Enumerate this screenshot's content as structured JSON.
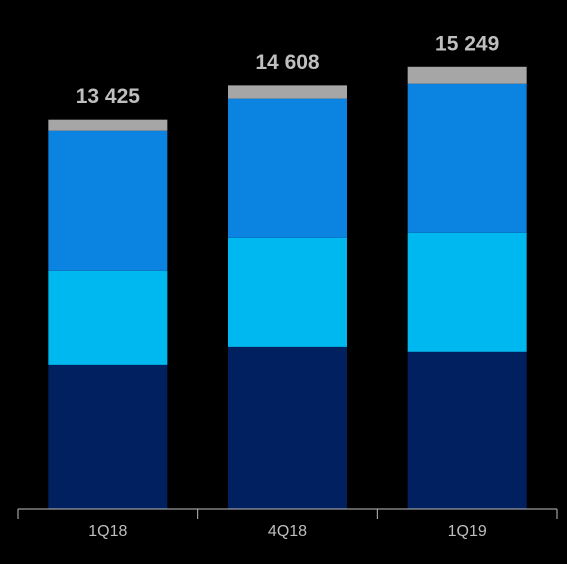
{
  "chart_data": {
    "type": "stacked-bar",
    "categories": [
      "1Q18",
      "4Q18",
      "1Q19"
    ],
    "series": [
      {
        "color": "#002060",
        "values": [
          4970,
          5590,
          5420
        ]
      },
      {
        "color": "#00b8f0",
        "values": [
          3245,
          3760,
          4105
        ]
      },
      {
        "color": "#0a84e0",
        "values": [
          4830,
          4800,
          5140
        ]
      },
      {
        "color": "#a6a6a6",
        "values": [
          380,
          458,
          584
        ]
      }
    ],
    "totals": [
      13425,
      14608,
      15249
    ],
    "value_labels": [
      "13 425",
      "14 608",
      "15 249"
    ],
    "ylim": [
      0,
      16000
    ]
  }
}
